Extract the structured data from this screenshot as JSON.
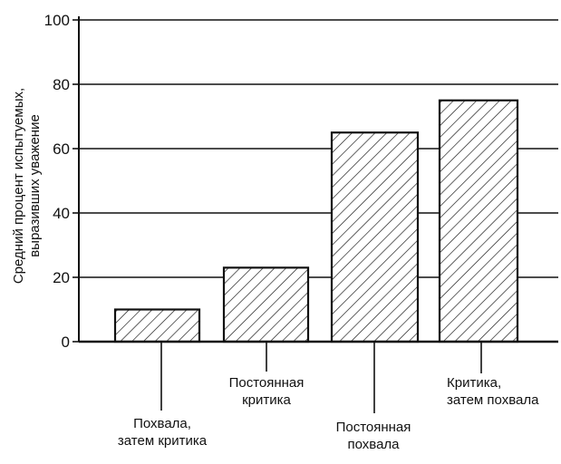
{
  "chart_data": {
    "type": "bar",
    "categories": [
      [
        "Похвала,",
        "затем критика"
      ],
      [
        "Постоянная",
        "критика"
      ],
      [
        "Постоянная",
        "похвала"
      ],
      [
        "Критика,",
        "затем похвала"
      ]
    ],
    "values": [
      10,
      23,
      65,
      75
    ],
    "ylabel": [
      "Средний процент испытуемых,",
      "выразивших уважение"
    ],
    "ylim": [
      0,
      100
    ],
    "yticks": [
      0,
      20,
      40,
      60,
      80,
      100
    ],
    "grid": true,
    "bar_fill": "diagonal-hatch",
    "colors": {
      "ink": "#111111",
      "background": "#ffffff"
    }
  }
}
